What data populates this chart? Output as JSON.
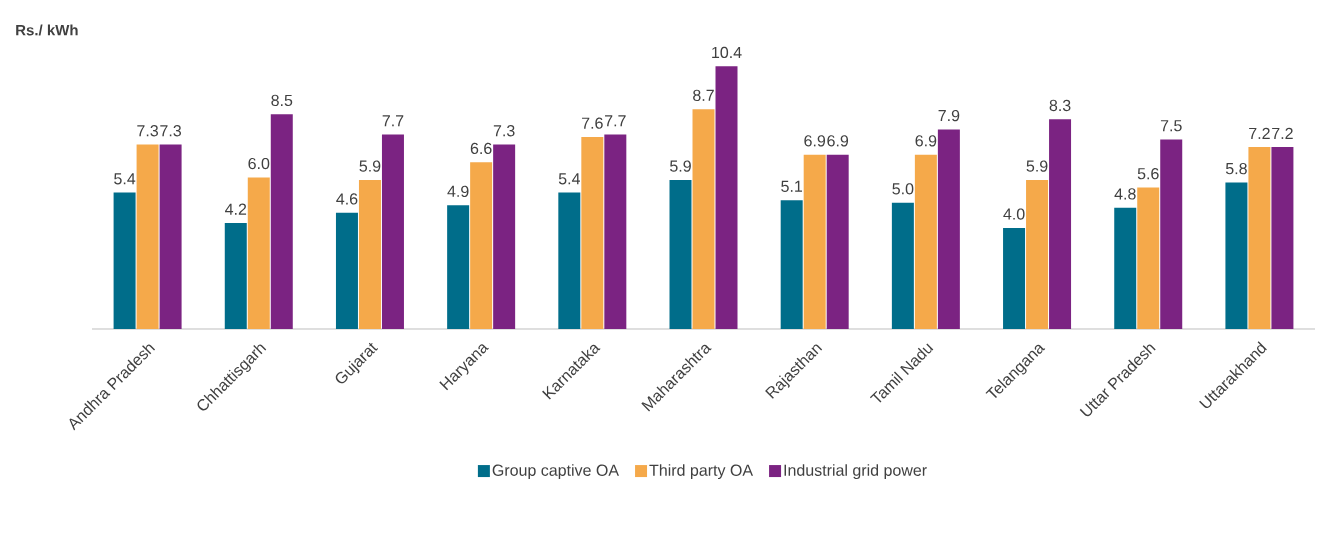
{
  "chart_data": {
    "type": "bar",
    "ylabel": "Rs./ kWh",
    "categories": [
      "Andhra Pradesh",
      "Chhattisgarh",
      "Gujarat",
      "Haryana",
      "Karnataka",
      "Maharashtra",
      "Rajasthan",
      "Tamil Nadu",
      "Telangana",
      "Uttar Pradesh",
      "Uttarakhand"
    ],
    "series": [
      {
        "name": "Group captive OA",
        "color": "#006d8a",
        "values": [
          5.4,
          4.2,
          4.6,
          4.9,
          5.4,
          5.9,
          5.1,
          5.0,
          4.0,
          4.8,
          5.8
        ],
        "value_labels": [
          "5.4",
          "4.2",
          "4.6",
          "4.9",
          "5.4",
          "5.9",
          "5.1",
          "5.0",
          "4.0",
          "4.8",
          "5.8"
        ]
      },
      {
        "name": "Third party OA",
        "color": "#f5a94a",
        "values": [
          7.3,
          6.0,
          5.9,
          6.6,
          7.6,
          8.7,
          6.9,
          6.9,
          5.9,
          5.6,
          7.2
        ],
        "value_labels": [
          "7.3",
          "6.0",
          "5.9",
          "6.6",
          "7.6",
          "8.7",
          "6.9",
          "6.9",
          "5.9",
          "5.6",
          "7.2"
        ]
      },
      {
        "name": "Industrial grid power",
        "color": "#7b2382",
        "values": [
          7.3,
          8.5,
          7.7,
          7.3,
          7.7,
          10.4,
          6.9,
          7.9,
          8.3,
          7.5,
          7.2
        ],
        "value_labels": [
          "7.3",
          "8.5",
          "7.7",
          "7.3",
          "7.7",
          "10.4",
          "6.9",
          "7.9",
          "8.3",
          "7.5",
          "7.2"
        ]
      }
    ],
    "tick_labels": "x",
    "legend": "bottom",
    "grid": false
  }
}
